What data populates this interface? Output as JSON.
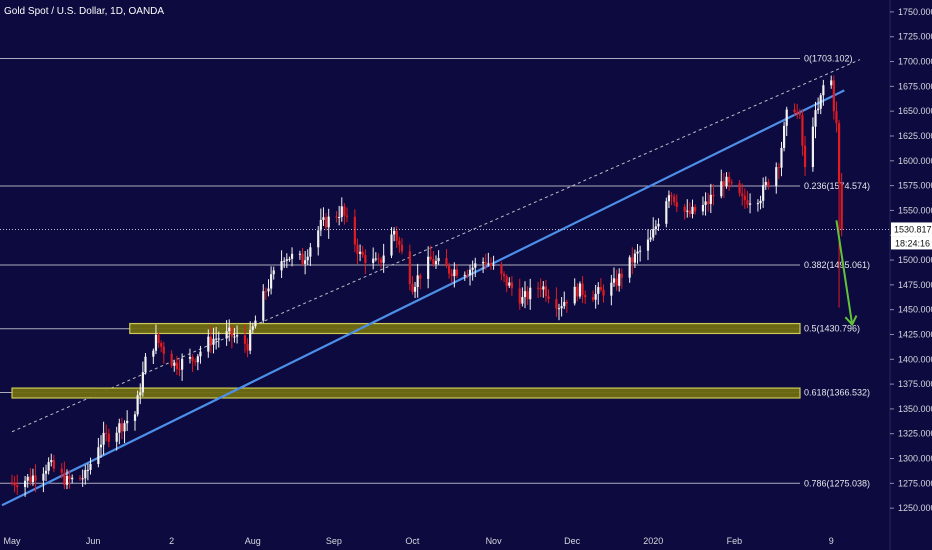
{
  "colors": {
    "background": "#0c0a3e",
    "bull": "#f2f2f2",
    "bear": "#e21b22",
    "trendline": "#4d8fe8",
    "channel": "#e8e8e8",
    "fib_line": "#c9c9d6",
    "zone_fill": "#6f6c12",
    "zone_border": "#d8d35a",
    "arrow": "#63c23a",
    "axis_text": "#d7d7e0",
    "price_tag_bg": "#ffffff",
    "price_tag_text": "#111111"
  },
  "chart_data": {
    "type": "candlestick",
    "title": "Gold Spot / U.S. Dollar, 1D, OANDA",
    "ylim": [
      1230,
      1760
    ],
    "yticks": [
      1250,
      1275,
      1300,
      1325,
      1350,
      1375,
      1400,
      1425,
      1450,
      1475,
      1500,
      1525,
      1550,
      1575,
      1600,
      1625,
      1650,
      1675,
      1700,
      1725,
      1750
    ],
    "ytick_labels": [
      "1250.000",
      "1275.000",
      "1300.000",
      "1325.000",
      "1350.000",
      "1375.000",
      "1400.000",
      "1425.000",
      "1450.000",
      "1475.000",
      "1500.000",
      "1525.000",
      "1550.000",
      "1575.000",
      "1600.000",
      "1625.000",
      "1650.000",
      "1675.000",
      "1700.000",
      "1725.000",
      "1750.000"
    ],
    "x_range": [
      "2019-05-01",
      "2020-03-20"
    ],
    "xticks": [
      {
        "date": "2019-05-01",
        "label": "May"
      },
      {
        "date": "2019-06-01",
        "label": "Jun"
      },
      {
        "date": "2019-07-01",
        "label": "2"
      },
      {
        "date": "2019-08-01",
        "label": "Aug"
      },
      {
        "date": "2019-09-01",
        "label": "Sep"
      },
      {
        "date": "2019-10-01",
        "label": "Oct"
      },
      {
        "date": "2019-11-01",
        "label": "Nov"
      },
      {
        "date": "2019-12-01",
        "label": "Dec"
      },
      {
        "date": "2020-01-01",
        "label": "2020"
      },
      {
        "date": "2020-02-01",
        "label": "Feb"
      },
      {
        "date": "2020-03-09",
        "label": "9"
      }
    ],
    "last_price": {
      "value": 1530.817,
      "label": "1530.817",
      "countdown": "18:24:16"
    },
    "fib_levels": [
      {
        "ratio": "0",
        "value": 1703.102,
        "label": "0(1703.102)"
      },
      {
        "ratio": "0.236",
        "value": 1574.574,
        "label": "0.236(1574.574)"
      },
      {
        "ratio": "0.382",
        "value": 1495.061,
        "label": "0.382(1495.061)"
      },
      {
        "ratio": "0.5",
        "value": 1430.796,
        "label": "0.5(1430.796)"
      },
      {
        "ratio": "0.618",
        "value": 1366.532,
        "label": "0.618(1366.532)"
      },
      {
        "ratio": "0.786",
        "value": 1275.038,
        "label": "0.786(1275.038)"
      }
    ],
    "zones": [
      {
        "from": 1426,
        "to": 1436,
        "start": "2019-06-15",
        "end": "2020-03-20"
      },
      {
        "from": 1361,
        "to": 1371,
        "start": "2019-05-01",
        "end": "2020-03-20"
      }
    ],
    "trendline": {
      "p1": {
        "date": "2019-05-01",
        "value": 1258
      },
      "p2": {
        "date": "2020-03-14",
        "value": 1671
      }
    },
    "channel_line": {
      "p1": {
        "date": "2019-05-01",
        "value": 1327
      },
      "p2": {
        "date": "2020-03-20",
        "value": 1702
      }
    },
    "arrow": {
      "from": {
        "date": "2020-03-11",
        "value": 1540
      },
      "to": {
        "date": "2020-03-17",
        "value": 1435
      }
    },
    "ohlc_anchors": [
      {
        "date": "2019-05-01",
        "close": 1276
      },
      {
        "date": "2019-05-08",
        "close": 1280
      },
      {
        "date": "2019-05-15",
        "close": 1294
      },
      {
        "date": "2019-05-22",
        "close": 1277
      },
      {
        "date": "2019-05-29",
        "close": 1282
      },
      {
        "date": "2019-06-03",
        "close": 1315
      },
      {
        "date": "2019-06-10",
        "close": 1330
      },
      {
        "date": "2019-06-17",
        "close": 1345
      },
      {
        "date": "2019-06-21",
        "close": 1398
      },
      {
        "date": "2019-06-25",
        "close": 1420
      },
      {
        "date": "2019-07-02",
        "close": 1395
      },
      {
        "date": "2019-07-09",
        "close": 1400
      },
      {
        "date": "2019-07-16",
        "close": 1420
      },
      {
        "date": "2019-07-23",
        "close": 1425
      },
      {
        "date": "2019-07-30",
        "close": 1415
      },
      {
        "date": "2019-08-06",
        "close": 1470
      },
      {
        "date": "2019-08-13",
        "close": 1505
      },
      {
        "date": "2019-08-20",
        "close": 1500
      },
      {
        "date": "2019-08-27",
        "close": 1535
      },
      {
        "date": "2019-09-04",
        "close": 1550
      },
      {
        "date": "2019-09-11",
        "close": 1505
      },
      {
        "date": "2019-09-18",
        "close": 1495
      },
      {
        "date": "2019-09-24",
        "close": 1530
      },
      {
        "date": "2019-10-01",
        "close": 1475
      },
      {
        "date": "2019-10-08",
        "close": 1500
      },
      {
        "date": "2019-10-15",
        "close": 1490
      },
      {
        "date": "2019-10-22",
        "close": 1490
      },
      {
        "date": "2019-10-29",
        "close": 1500
      },
      {
        "date": "2019-11-05",
        "close": 1480
      },
      {
        "date": "2019-11-12",
        "close": 1460
      },
      {
        "date": "2019-11-19",
        "close": 1475
      },
      {
        "date": "2019-11-26",
        "close": 1455
      },
      {
        "date": "2019-12-03",
        "close": 1470
      },
      {
        "date": "2019-12-10",
        "close": 1465
      },
      {
        "date": "2019-12-17",
        "close": 1475
      },
      {
        "date": "2019-12-24",
        "close": 1500
      },
      {
        "date": "2019-12-31",
        "close": 1520
      },
      {
        "date": "2020-01-07",
        "close": 1570
      },
      {
        "date": "2020-01-14",
        "close": 1545
      },
      {
        "date": "2020-01-21",
        "close": 1555
      },
      {
        "date": "2020-01-28",
        "close": 1580
      },
      {
        "date": "2020-02-04",
        "close": 1560
      },
      {
        "date": "2020-02-11",
        "close": 1565
      },
      {
        "date": "2020-02-18",
        "close": 1600
      },
      {
        "date": "2020-02-21",
        "close": 1645
      },
      {
        "date": "2020-02-24",
        "close": 1655
      },
      {
        "date": "2020-02-26",
        "close": 1640
      },
      {
        "date": "2020-02-28",
        "close": 1590
      },
      {
        "date": "2020-03-02",
        "close": 1640
      },
      {
        "date": "2020-03-04",
        "close": 1650
      },
      {
        "date": "2020-03-06",
        "close": 1675
      },
      {
        "date": "2020-03-09",
        "close": 1680
      },
      {
        "date": "2020-03-10",
        "close": 1655
      },
      {
        "date": "2020-03-11",
        "close": 1635
      },
      {
        "date": "2020-03-12",
        "close": 1575
      },
      {
        "date": "2020-03-13",
        "close": 1530
      }
    ]
  }
}
